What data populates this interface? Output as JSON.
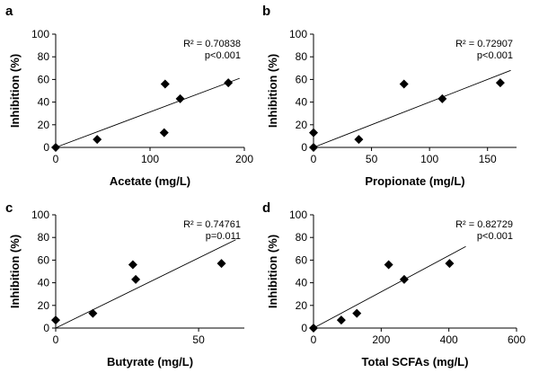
{
  "chart_data": [
    {
      "type": "scatter",
      "panel": "a",
      "xlabel": "Acetate (mg/L)",
      "ylabel": "Inhibition (%)",
      "xlim": [
        0,
        200
      ],
      "ylim": [
        0,
        100
      ],
      "xticks": [
        0,
        100,
        200
      ],
      "yticks": [
        0,
        20,
        40,
        60,
        80,
        100
      ],
      "points": [
        {
          "x": 0,
          "y": 0
        },
        {
          "x": 44,
          "y": 7
        },
        {
          "x": 115,
          "y": 13
        },
        {
          "x": 116,
          "y": 56
        },
        {
          "x": 132,
          "y": 43
        },
        {
          "x": 183,
          "y": 57
        }
      ],
      "trendline": {
        "x": [
          0,
          195
        ],
        "y": [
          0,
          61
        ]
      },
      "annotation": [
        "R² = 0.70838",
        "p<0.001"
      ],
      "grid": false
    },
    {
      "type": "scatter",
      "panel": "b",
      "xlabel": "Propionate (mg/L)",
      "ylabel": "Inhibition (%)",
      "xlim": [
        0,
        175
      ],
      "ylim": [
        0,
        100
      ],
      "xticks": [
        0,
        50,
        100,
        150
      ],
      "yticks": [
        0,
        20,
        40,
        60,
        80,
        100
      ],
      "points": [
        {
          "x": 0,
          "y": 0
        },
        {
          "x": 0,
          "y": 13
        },
        {
          "x": 39,
          "y": 7
        },
        {
          "x": 78,
          "y": 56
        },
        {
          "x": 111,
          "y": 43
        },
        {
          "x": 161,
          "y": 57
        }
      ],
      "trendline": {
        "x": [
          0,
          170
        ],
        "y": [
          0,
          68
        ]
      },
      "annotation": [
        "R² = 0.72907",
        "p<0.001"
      ],
      "grid": false
    },
    {
      "type": "scatter",
      "panel": "c",
      "xlabel": "Butyrate (mg/L)",
      "ylabel": "Inhibition (%)",
      "xlim": [
        0,
        66
      ],
      "ylim": [
        0,
        100
      ],
      "xticks": [
        0,
        50
      ],
      "yticks": [
        0,
        20,
        40,
        60,
        80,
        100
      ],
      "points": [
        {
          "x": 0,
          "y": 7
        },
        {
          "x": 13,
          "y": 13
        },
        {
          "x": 27,
          "y": 56
        },
        {
          "x": 28,
          "y": 43
        },
        {
          "x": 58,
          "y": 57
        }
      ],
      "trendline": {
        "x": [
          0,
          63
        ],
        "y": [
          0,
          78
        ]
      },
      "annotation": [
        "R² = 0.74761",
        "p=0.011"
      ],
      "grid": false
    },
    {
      "type": "scatter",
      "panel": "d",
      "xlabel": "Total SCFAs (mg/L)",
      "ylabel": "Inhibition (%)",
      "xlim": [
        0,
        600
      ],
      "ylim": [
        0,
        100
      ],
      "xticks": [
        0,
        200,
        400,
        600
      ],
      "yticks": [
        0,
        20,
        40,
        60,
        80,
        100
      ],
      "points": [
        {
          "x": 0,
          "y": 0
        },
        {
          "x": 82,
          "y": 7
        },
        {
          "x": 128,
          "y": 13
        },
        {
          "x": 222,
          "y": 56
        },
        {
          "x": 268,
          "y": 43
        },
        {
          "x": 402,
          "y": 57
        }
      ],
      "trendline": {
        "x": [
          0,
          450
        ],
        "y": [
          0,
          72
        ]
      },
      "annotation": [
        "R² = 0.82729",
        "p<0.001"
      ],
      "grid": false
    }
  ]
}
